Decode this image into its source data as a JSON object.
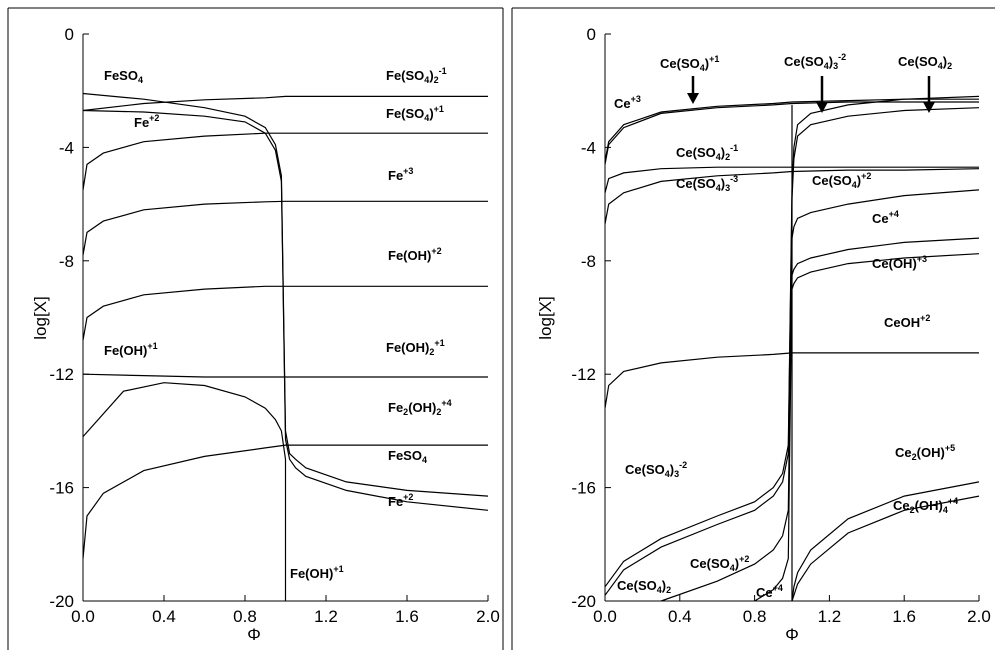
{
  "chart_data": [
    {
      "type": "line",
      "panel": "left",
      "xlabel": "Φ",
      "ylabel": "log[X]",
      "xlim": [
        0,
        2
      ],
      "ylim": [
        -20,
        0
      ],
      "xticks": [
        "0.0",
        "0.4",
        "0.8",
        "1.2",
        "1.6",
        "2.0"
      ],
      "yticks": [
        "0",
        "-4",
        "-8",
        "-12",
        "-16",
        "-20"
      ],
      "series": [
        {
          "name": "Fe(SO4)2-1",
          "x": [
            0.0,
            0.3,
            0.6,
            0.9,
            1.0,
            1.3,
            1.6,
            2.0
          ],
          "y": [
            -2.7,
            -2.45,
            -2.32,
            -2.25,
            -2.2,
            -2.2,
            -2.2,
            -2.2
          ]
        },
        {
          "name": "Fe(SO4)+1",
          "x": [
            0.0,
            0.02,
            0.1,
            0.3,
            0.6,
            0.9,
            1.0,
            1.3,
            1.6,
            2.0
          ],
          "y": [
            -5.5,
            -4.6,
            -4.2,
            -3.8,
            -3.6,
            -3.5,
            -3.5,
            -3.5,
            -3.5,
            -3.5
          ]
        },
        {
          "name": "Fe+3",
          "x": [
            0.0,
            0.02,
            0.1,
            0.3,
            0.6,
            0.9,
            1.0,
            1.3,
            1.6,
            2.0
          ],
          "y": [
            -7.8,
            -7.0,
            -6.6,
            -6.2,
            -6.0,
            -5.92,
            -5.9,
            -5.9,
            -5.9,
            -5.9
          ]
        },
        {
          "name": "Fe(OH)+2",
          "x": [
            0.0,
            0.02,
            0.1,
            0.3,
            0.6,
            0.9,
            1.0,
            1.3,
            1.6,
            2.0
          ],
          "y": [
            -10.8,
            -10.0,
            -9.6,
            -9.2,
            -9.0,
            -8.9,
            -8.9,
            -8.9,
            -8.9,
            -8.9
          ]
        },
        {
          "name": "Fe(OH)2+1",
          "x": [
            0.0,
            0.3,
            0.6,
            0.9,
            1.0,
            1.3,
            1.6,
            2.0
          ],
          "y": [
            -12.0,
            -12.05,
            -12.1,
            -12.1,
            -12.1,
            -12.1,
            -12.1,
            -12.1
          ]
        },
        {
          "name": "Fe2(OH)2+4",
          "x": [
            0.0,
            0.02,
            0.1,
            0.3,
            0.6,
            0.9,
            1.0,
            1.3,
            1.6,
            2.0
          ],
          "y": [
            -18.5,
            -17.0,
            -16.2,
            -15.4,
            -14.9,
            -14.6,
            -14.5,
            -14.5,
            -14.5,
            -14.5
          ]
        },
        {
          "name": "FeSO4",
          "x": [
            0.0,
            0.3,
            0.6,
            0.8,
            0.9,
            0.95,
            0.98,
            1.0,
            1.02,
            1.05,
            1.1,
            1.3,
            1.6,
            2.0
          ],
          "y": [
            -2.1,
            -2.3,
            -2.6,
            -2.9,
            -3.3,
            -3.9,
            -5.0,
            -14.0,
            -14.8,
            -15.0,
            -15.3,
            -15.8,
            -16.1,
            -16.3
          ]
        },
        {
          "name": "Fe+2",
          "x": [
            0.0,
            0.3,
            0.6,
            0.8,
            0.9,
            0.95,
            0.98,
            1.0,
            1.02,
            1.05,
            1.1,
            1.3,
            1.6,
            2.0
          ],
          "y": [
            -2.7,
            -2.75,
            -2.9,
            -3.1,
            -3.5,
            -4.1,
            -5.2,
            -14.3,
            -15.0,
            -15.3,
            -15.6,
            -16.1,
            -16.5,
            -16.8
          ]
        },
        {
          "name": "Fe(OH)+1",
          "x": [
            0.0,
            0.2,
            0.4,
            0.6,
            0.8,
            0.9,
            0.95,
            0.98,
            1.0,
            1.0
          ],
          "y": [
            -14.2,
            -12.6,
            -12.3,
            -12.4,
            -12.8,
            -13.2,
            -13.6,
            -14.0,
            -15.0,
            -20.0
          ]
        }
      ],
      "labels": {
        "fe_so4_2": [
          "Fe(SO",
          "4",
          ")",
          "2",
          "-1"
        ],
        "fe_so4_p1": [
          "Fe(SO",
          "4",
          ")",
          "+1"
        ],
        "fe_p3": [
          "Fe",
          "+3"
        ],
        "fe_oh_p2": [
          "Fe(OH)",
          "+2"
        ],
        "fe_oh2_p1": [
          "Fe(OH)",
          "2",
          "+1"
        ],
        "fe2_oh2_p4": [
          "Fe",
          "2",
          "(OH)",
          "2",
          "+4"
        ],
        "feso4_right": [
          "FeSO",
          "4"
        ],
        "fe_p2_right": [
          "Fe",
          "+2"
        ],
        "fe_oh_p1_bottom": [
          "Fe(OH)",
          "+1"
        ],
        "feso4_left": [
          "FeSO",
          "4"
        ],
        "fe_p2_left": [
          "Fe",
          "+2"
        ],
        "fe_oh_p1_left": [
          "Fe(OH)",
          "+1"
        ]
      }
    },
    {
      "type": "line",
      "panel": "right",
      "xlabel": "Φ",
      "ylabel": "log[X]",
      "xlim": [
        0,
        2
      ],
      "ylim": [
        -20,
        0
      ],
      "xticks": [
        "0.0",
        "0.4",
        "0.8",
        "1.2",
        "1.6",
        "2.0"
      ],
      "yticks": [
        "0",
        "-4",
        "-8",
        "-12",
        "-16",
        "-20"
      ],
      "series": [
        {
          "name": "Ce+3",
          "x": [
            0.0,
            0.02,
            0.1,
            0.3,
            0.6,
            0.9,
            1.0,
            1.3,
            1.6,
            2.0
          ],
          "y": [
            -4.6,
            -3.9,
            -3.3,
            -2.8,
            -2.6,
            -2.5,
            -2.45,
            -2.4,
            -2.4,
            -2.4
          ]
        },
        {
          "name": "Ce(SO4)+1",
          "x": [
            0.0,
            0.02,
            0.1,
            0.3,
            0.6,
            0.9,
            1.0,
            1.3,
            1.6,
            2.0
          ],
          "y": [
            -4.5,
            -3.8,
            -3.2,
            -2.75,
            -2.55,
            -2.45,
            -2.4,
            -2.35,
            -2.3,
            -2.3
          ]
        },
        {
          "name": "Ce(SO4)2-1",
          "x": [
            0.0,
            0.02,
            0.1,
            0.3,
            0.6,
            0.9,
            1.0,
            1.3,
            1.6,
            2.0
          ],
          "y": [
            -5.6,
            -5.1,
            -4.9,
            -4.75,
            -4.7,
            -4.7,
            -4.7,
            -4.7,
            -4.7,
            -4.7
          ]
        },
        {
          "name": "Ce(SO4)3-3",
          "x": [
            0.0,
            0.02,
            0.1,
            0.3,
            0.6,
            0.9,
            1.0,
            1.3,
            1.6,
            2.0
          ],
          "y": [
            -6.7,
            -6.0,
            -5.6,
            -5.2,
            -5.0,
            -4.9,
            -4.85,
            -4.8,
            -4.8,
            -4.75
          ]
        },
        {
          "name": "Ce(SO4)3-2",
          "x": [
            0.0,
            0.1,
            0.3,
            0.6,
            0.8,
            0.9,
            0.95,
            0.98,
            1.0,
            1.01,
            1.03,
            1.1,
            1.3,
            1.6,
            2.0
          ],
          "y": [
            -19.5,
            -18.6,
            -17.8,
            -17.0,
            -16.5,
            -16.0,
            -15.5,
            -14.5,
            -5.5,
            -4.0,
            -3.2,
            -2.8,
            -2.5,
            -2.3,
            -2.2
          ]
        },
        {
          "name": "Ce(SO4)2",
          "x": [
            0.0,
            0.1,
            0.3,
            0.6,
            0.8,
            0.9,
            0.95,
            0.98,
            1.0,
            1.01,
            1.03,
            1.1,
            1.3,
            1.6,
            2.0
          ],
          "y": [
            -19.8,
            -18.9,
            -18.1,
            -17.3,
            -16.8,
            -16.3,
            -15.8,
            -14.8,
            -5.8,
            -4.4,
            -3.6,
            -3.2,
            -2.9,
            -2.7,
            -2.6
          ]
        },
        {
          "name": "Ce(SO4)+2",
          "x": [
            0.3,
            0.6,
            0.8,
            0.9,
            0.95,
            0.98,
            1.0,
            1.01,
            1.03,
            1.1,
            1.3,
            1.6,
            2.0
          ],
          "y": [
            -20.0,
            -19.3,
            -18.7,
            -18.2,
            -17.7,
            -16.8,
            -7.2,
            -6.8,
            -6.5,
            -6.3,
            -6.0,
            -5.7,
            -5.5
          ]
        },
        {
          "name": "Ce+4",
          "x": [
            0.8,
            0.9,
            0.95,
            0.98,
            1.0,
            1.01,
            1.03,
            1.1,
            1.3,
            1.6,
            2.0
          ],
          "y": [
            -20.0,
            -19.6,
            -19.2,
            -18.5,
            -8.5,
            -8.3,
            -8.1,
            -7.9,
            -7.6,
            -7.35,
            -7.2
          ]
        },
        {
          "name": "Ce(OH)+3",
          "x": [
            1.0,
            1.01,
            1.03,
            1.1,
            1.3,
            1.6,
            2.0
          ],
          "y": [
            -9.0,
            -8.8,
            -8.6,
            -8.4,
            -8.1,
            -7.9,
            -7.75
          ]
        },
        {
          "name": "CeOH+2",
          "x": [
            0.0,
            0.02,
            0.1,
            0.3,
            0.6,
            0.9,
            1.0,
            1.3,
            1.6,
            2.0
          ],
          "y": [
            -13.2,
            -12.4,
            -11.9,
            -11.6,
            -11.4,
            -11.3,
            -11.25,
            -11.25,
            -11.25,
            -11.25
          ]
        },
        {
          "name": "Ce2(OH)+5",
          "x": [
            1.0,
            1.01,
            1.03,
            1.1,
            1.3,
            1.6,
            2.0
          ],
          "y": [
            -20.0,
            -19.5,
            -19.0,
            -18.2,
            -17.1,
            -16.3,
            -15.8
          ]
        },
        {
          "name": "Ce2(OH)+4",
          "x": [
            1.0,
            1.01,
            1.03,
            1.1,
            1.3,
            1.6,
            2.0
          ],
          "y": [
            -20.0,
            -19.8,
            -19.4,
            -18.7,
            -17.6,
            -16.8,
            -16.3
          ]
        },
        {
          "name": "vertical",
          "x": [
            1.0,
            1.0
          ],
          "y": [
            -20.0,
            -2.5
          ]
        }
      ],
      "labels": {
        "ce_so4_p1": [
          "Ce(SO",
          "4",
          ")",
          "+1"
        ],
        "ce_so4_3_m2_top": [
          "Ce(SO",
          "4",
          ")",
          "3",
          "-2"
        ],
        "ce_so4_2_top": [
          "Ce(SO",
          "4",
          ")",
          "2"
        ],
        "ce_p3": [
          "Ce",
          "+3"
        ],
        "ce_so4_2_m1": [
          "Ce(SO",
          "4",
          ")",
          "2",
          "-1"
        ],
        "ce_so4_3_m3": [
          "Ce(SO",
          "4",
          ")",
          "3",
          "-3"
        ],
        "ce_so4_p2_right": [
          "Ce(SO",
          "4",
          ")",
          "+2"
        ],
        "ce_p4_right": [
          "Ce",
          "+4"
        ],
        "ce_oh_p3": [
          "Ce(OH)",
          "+3"
        ],
        "ceoh_p2": [
          "CeOH",
          "+2"
        ],
        "ce_so4_3_m2_left": [
          "Ce(SO",
          "4",
          ")",
          "3",
          "-2"
        ],
        "ce2_oh_p5": [
          "Ce",
          "2",
          "(OH)",
          "+5"
        ],
        "ce_so4_p2_bottom": [
          "Ce(SO",
          "4",
          ")",
          "+2"
        ],
        "ce2_oh4_p4": [
          "Ce",
          "2",
          "(OH)",
          "4",
          "+4"
        ],
        "ce_so4_2_bottom": [
          "Ce(SO",
          "4",
          ")",
          "2"
        ],
        "ce_p4_bottom": [
          "Ce",
          "+4"
        ]
      }
    }
  ]
}
